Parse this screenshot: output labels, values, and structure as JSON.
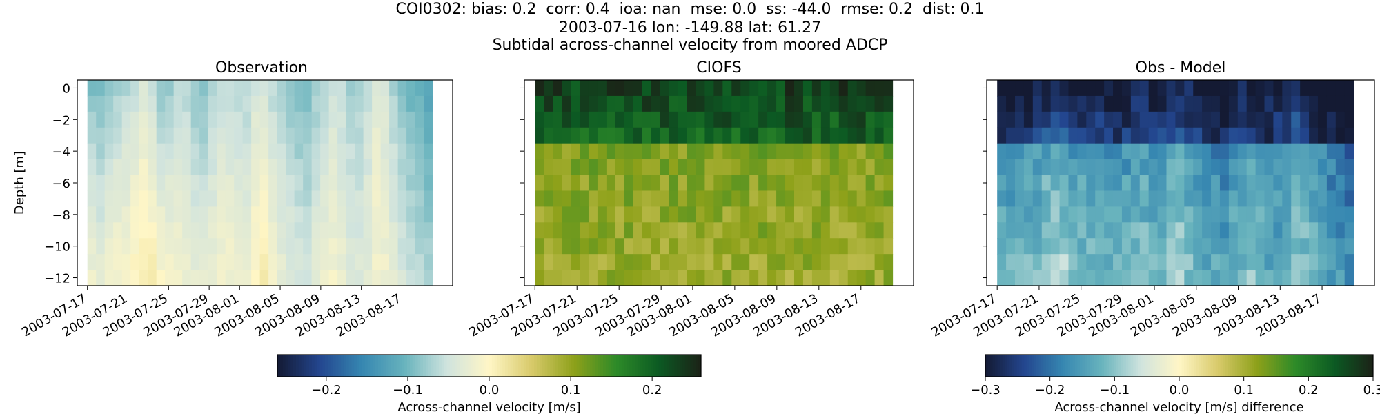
{
  "figure": {
    "title_lines": [
      "COI0302: bias: 0.2  corr: 0.4  ioa: nan  mse: 0.0  ss: -44.0  rmse: 0.2  dist: 0.1",
      "2003-07-16 lon: -149.88 lat: 61.27",
      "Subtidal across-channel velocity from moored ADCP"
    ]
  },
  "colors": {
    "colormap": [
      "#141a33",
      "#23468f",
      "#3687b1",
      "#68b3bd",
      "#cfe3de",
      "#fff6c6",
      "#d8ca6a",
      "#8ea11a",
      "#2d8a28",
      "#0c5a23",
      "#1b2217"
    ]
  },
  "chart_data": [
    {
      "type": "heatmap",
      "title": "Observation",
      "ylabel": "Depth [m]",
      "xlabel": "",
      "x_start": "2003-07-17",
      "x_end": "2003-08-20",
      "xlim": [
        "2003-07-16",
        "2003-08-22"
      ],
      "ylim": [
        -12.5,
        0.5
      ],
      "xticks": [
        "2003-07-17",
        "2003-07-21",
        "2003-07-25",
        "2003-07-29",
        "2003-08-01",
        "2003-08-05",
        "2003-08-09",
        "2003-08-13",
        "2003-08-17"
      ],
      "yticks": [
        0,
        -2,
        -4,
        -6,
        -8,
        -10,
        -12
      ],
      "depth_levels": [
        0,
        -1,
        -2,
        -3,
        -4,
        -5,
        -6,
        -7,
        -8,
        -9,
        -10,
        -11,
        -12
      ],
      "value_range": [
        -0.26,
        0.26
      ],
      "summary": "Mostly -0.05 to -0.12 m/s near surface, weakening to about 0 to -0.03 m/s at depth; near-zero pulses around 2003-07-25 to 2003-07-27 and 2003-08-03.",
      "time_profile_surface": [
        -0.09,
        -0.1,
        -0.08,
        -0.07,
        -0.06,
        -0.04,
        -0.06,
        -0.09,
        -0.07,
        -0.06,
        -0.08,
        -0.09,
        -0.07,
        -0.05,
        -0.06,
        -0.07,
        -0.05,
        -0.04,
        -0.07,
        -0.08,
        -0.09,
        -0.1,
        -0.08,
        -0.06,
        -0.05,
        -0.07,
        -0.08,
        -0.06,
        -0.03,
        -0.05,
        -0.08,
        -0.1,
        -0.11,
        -0.12
      ],
      "time_profile_bottom": [
        -0.02,
        -0.03,
        -0.01,
        -0.01,
        0.0,
        0.01,
        0.01,
        -0.01,
        -0.01,
        -0.02,
        -0.03,
        -0.03,
        -0.02,
        -0.01,
        -0.02,
        -0.03,
        0.0,
        0.01,
        -0.02,
        -0.03,
        -0.04,
        -0.05,
        -0.03,
        -0.02,
        -0.01,
        -0.03,
        -0.04,
        -0.03,
        -0.01,
        -0.02,
        -0.04,
        -0.05,
        -0.06,
        -0.07
      ]
    },
    {
      "type": "heatmap",
      "title": "CIOFS",
      "xticks": [
        "2003-07-17",
        "2003-07-21",
        "2003-07-25",
        "2003-07-29",
        "2003-08-01",
        "2003-08-05",
        "2003-08-09",
        "2003-08-13",
        "2003-08-17"
      ],
      "yticks": [
        0,
        -2,
        -4,
        -6,
        -8,
        -10,
        -12
      ],
      "value_range": [
        -0.26,
        0.26
      ],
      "summary": "Strong positive velocities 0.20 to 0.26 m/s in top 3 m, about 0.08 to 0.14 m/s below 4 m.",
      "upper_layer_values": [
        0.23,
        0.22,
        0.21,
        0.2
      ],
      "lower_layer_value": 0.11
    },
    {
      "type": "heatmap",
      "title": "Obs - Model",
      "xticks": [
        "2003-07-17",
        "2003-07-21",
        "2003-07-25",
        "2003-07-29",
        "2003-08-01",
        "2003-08-05",
        "2003-08-09",
        "2003-08-13",
        "2003-08-17"
      ],
      "yticks": [
        0,
        -2,
        -4,
        -6,
        -8,
        -10,
        -12
      ],
      "value_range": [
        -0.3,
        0.3
      ],
      "summary": "Negative everywhere, about -0.3 near surface and -0.12 to -0.22 at depth."
    }
  ],
  "colorbars": [
    {
      "label": "Across-channel velocity [m/s]",
      "range": [
        -0.26,
        0.26
      ],
      "ticks": [
        -0.2,
        -0.1,
        0.0,
        0.1,
        0.2
      ],
      "tick_labels": [
        "−0.2",
        "−0.1",
        "0.0",
        "0.1",
        "0.2"
      ]
    },
    {
      "label": "Across-channel velocity [m/s] difference",
      "range": [
        -0.3,
        0.3
      ],
      "ticks": [
        -0.3,
        -0.2,
        -0.1,
        0.0,
        0.1,
        0.2,
        0.3
      ],
      "tick_labels": [
        "−0.3",
        "−0.2",
        "−0.1",
        "0.0",
        "0.1",
        "0.2",
        "0.3"
      ]
    }
  ],
  "axis_tick_labels": {
    "y": [
      "0",
      "−2",
      "−4",
      "−6",
      "−8",
      "−10",
      "−12"
    ]
  }
}
